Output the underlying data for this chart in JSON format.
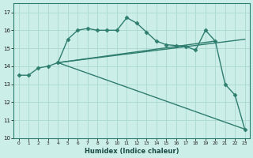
{
  "xlabel": "Humidex (Indice chaleur)",
  "bg_color": "#cceee8",
  "grid_color": "#aad8d0",
  "line_color": "#2e7d6e",
  "xlim": [
    -0.5,
    23.5
  ],
  "ylim": [
    10,
    17.5
  ],
  "xticks": [
    0,
    1,
    2,
    3,
    4,
    5,
    6,
    7,
    8,
    9,
    10,
    11,
    12,
    13,
    14,
    15,
    16,
    17,
    18,
    19,
    20,
    21,
    22,
    23
  ],
  "yticks": [
    10,
    11,
    12,
    13,
    14,
    15,
    16,
    17
  ],
  "lines": [
    {
      "x": [
        0,
        1,
        2,
        3,
        4,
        5,
        6,
        7,
        8,
        9,
        10,
        11,
        12,
        13,
        14,
        15,
        16,
        17,
        18,
        19,
        20,
        21,
        22,
        23
      ],
      "y": [
        13.5,
        13.5,
        13.9,
        14.0,
        14.2,
        15.5,
        16.0,
        16.1,
        16.0,
        16.0,
        16.0,
        16.7,
        16.4,
        15.9,
        15.4,
        15.2,
        15.15,
        15.1,
        14.9,
        16.0,
        15.4,
        13.0,
        12.4,
        10.5
      ],
      "marker": "D",
      "markersize": 2.5,
      "linewidth": 1.0
    },
    {
      "x": [
        4,
        23
      ],
      "y": [
        14.2,
        15.5
      ],
      "marker": null,
      "markersize": 0,
      "linewidth": 1.0
    },
    {
      "x": [
        4,
        20
      ],
      "y": [
        14.2,
        15.4
      ],
      "marker": null,
      "markersize": 0,
      "linewidth": 1.0
    },
    {
      "x": [
        4,
        23
      ],
      "y": [
        14.2,
        10.5
      ],
      "marker": null,
      "markersize": 0,
      "linewidth": 1.0
    }
  ]
}
